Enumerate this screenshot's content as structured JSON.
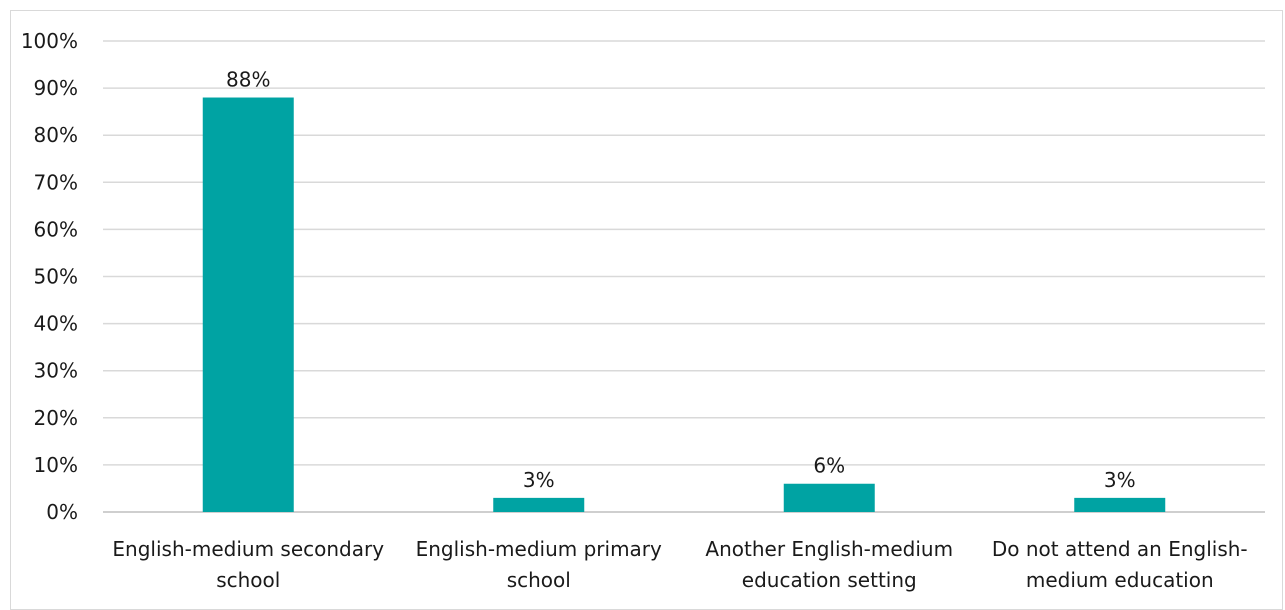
{
  "chart_data": {
    "type": "bar",
    "categories": [
      [
        "English-medium secondary",
        "school"
      ],
      [
        "English-medium primary",
        "school"
      ],
      [
        "Another English-medium",
        "education setting"
      ],
      [
        "Do not attend an English-",
        "medium education"
      ]
    ],
    "values": [
      88,
      3,
      6,
      3
    ],
    "value_labels": [
      "88%",
      "3%",
      "6%",
      "3%"
    ],
    "y_ticks": [
      "0%",
      "10%",
      "20%",
      "30%",
      "40%",
      "50%",
      "60%",
      "70%",
      "80%",
      "90%",
      "100%"
    ],
    "ylim": [
      0,
      100
    ],
    "grid": true,
    "legend": "none",
    "bar_color": "#00A3A3"
  }
}
